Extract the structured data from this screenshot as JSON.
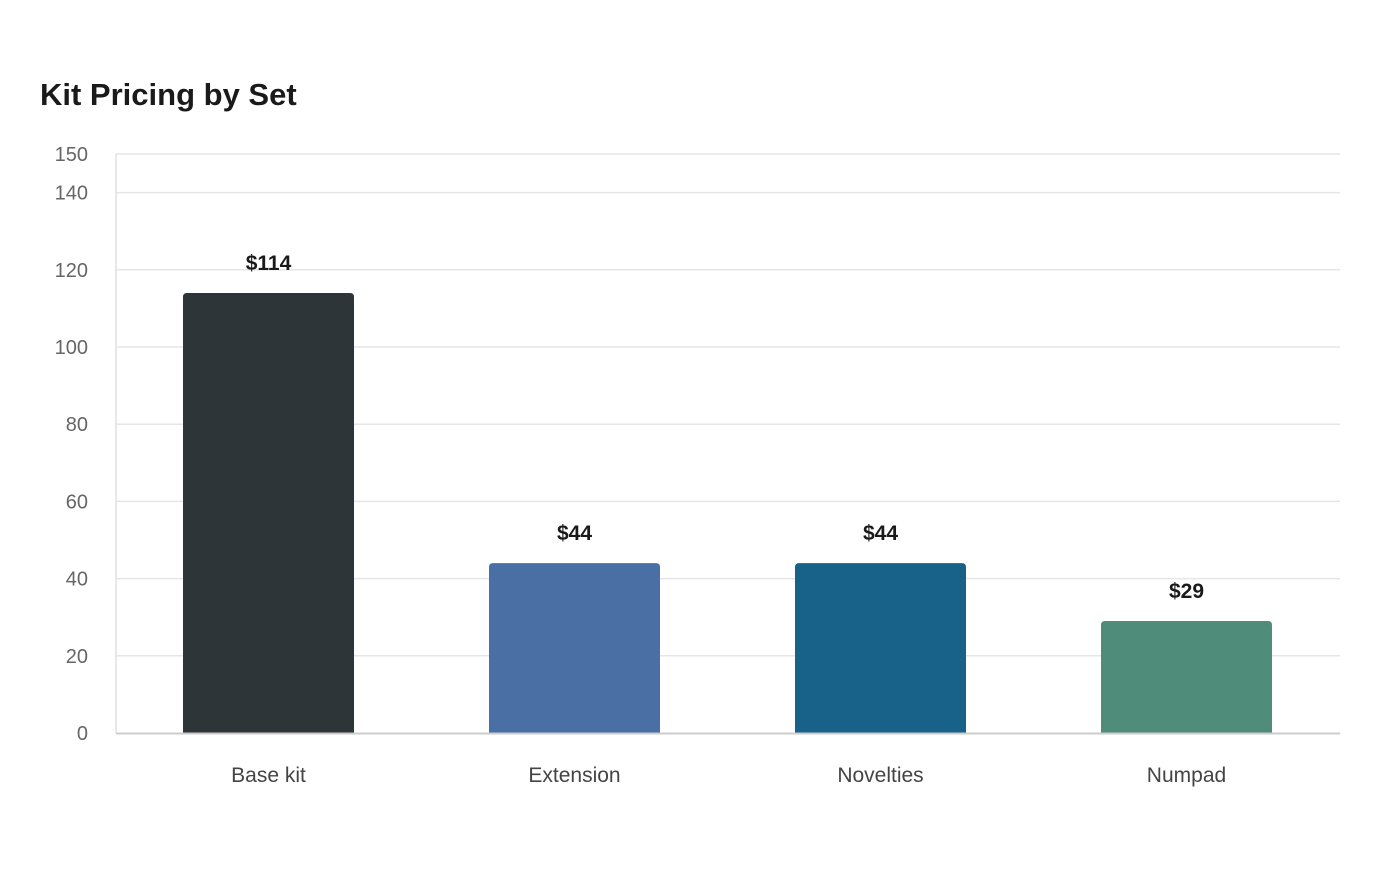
{
  "chart_data": {
    "type": "bar",
    "title": "Kit Pricing by Set",
    "xlabel": "",
    "ylabel": "",
    "categories": [
      "Base kit",
      "Extension",
      "Novelties",
      "Numpad"
    ],
    "values": [
      114,
      44,
      44,
      29
    ],
    "value_labels": [
      "$114",
      "$44",
      "$44",
      "$29"
    ],
    "colors": [
      "#2e3538",
      "#4a6fa5",
      "#186289",
      "#4f8c7a"
    ],
    "ylim": [
      0,
      150
    ],
    "yticks": [
      0,
      20,
      40,
      60,
      80,
      100,
      120,
      140,
      150
    ],
    "grid": true,
    "legend": "none"
  }
}
